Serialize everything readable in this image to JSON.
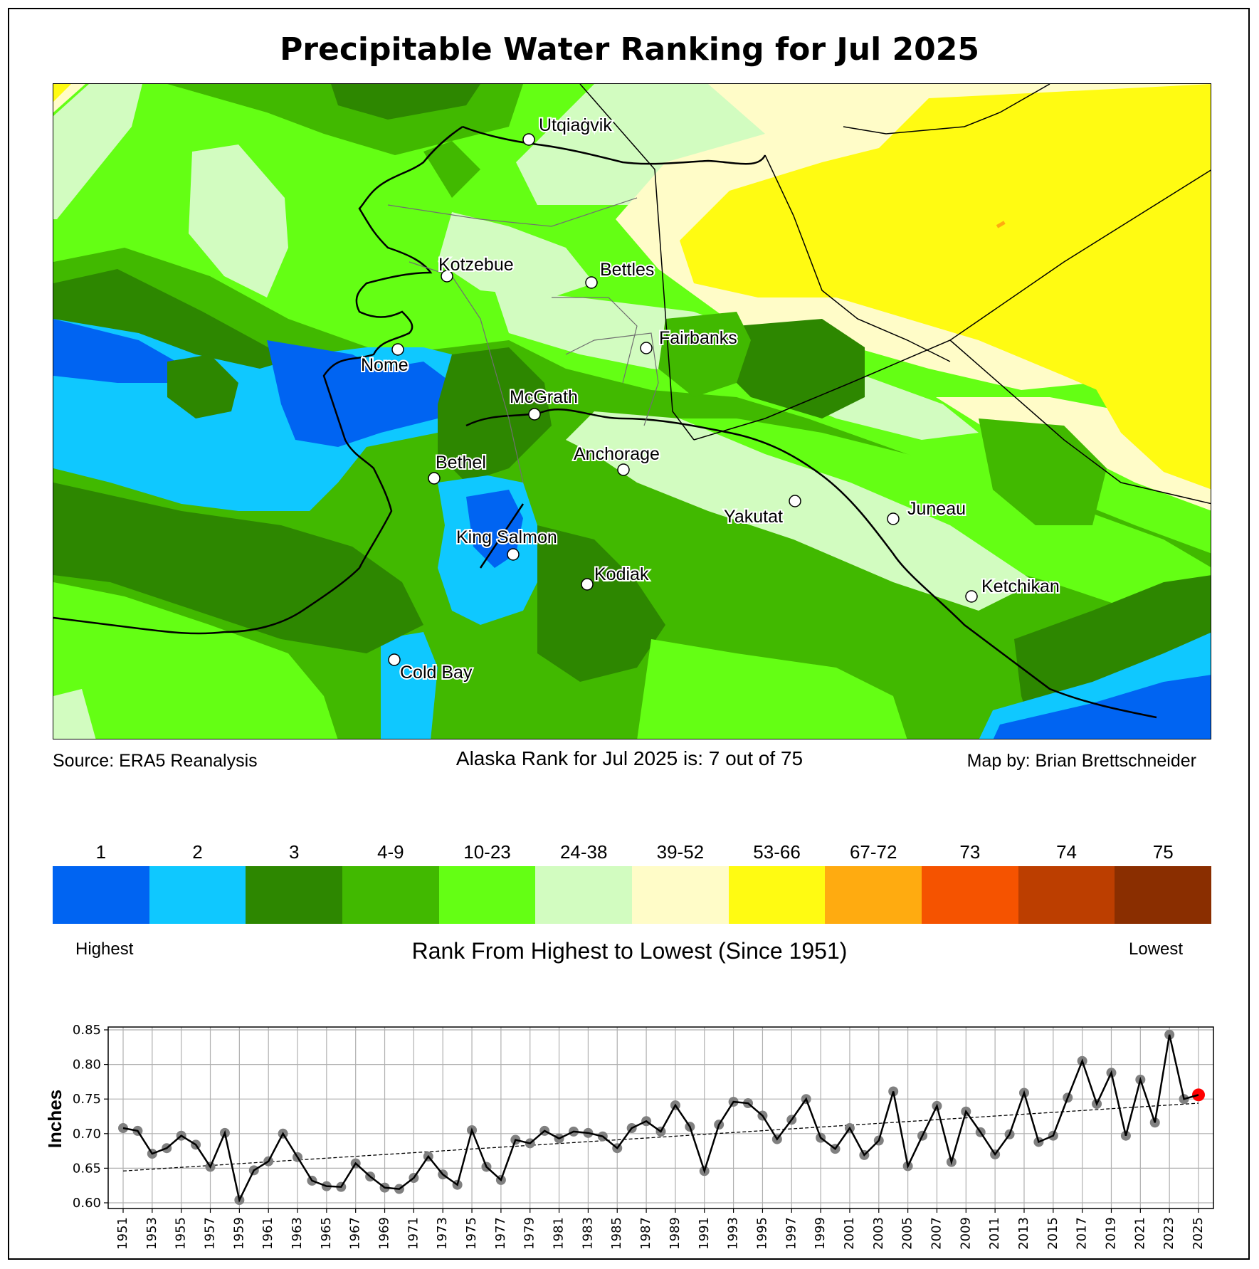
{
  "title": "Precipitable Water Ranking for Jul 2025",
  "source_text": "Source: ERA5 Reanalysis",
  "rank_text": "Alaska Rank for Jul 2025 is: 7 out of 75",
  "credit_text": "Map by: Brian Brettschneider",
  "map": {
    "cities": [
      {
        "name": "Utqiaġvik"
      },
      {
        "name": "Kotzebue"
      },
      {
        "name": "Bettles"
      },
      {
        "name": "Nome"
      },
      {
        "name": "Fairbanks"
      },
      {
        "name": "McGrath"
      },
      {
        "name": "Anchorage"
      },
      {
        "name": "Bethel"
      },
      {
        "name": "Yakutat"
      },
      {
        "name": "Juneau"
      },
      {
        "name": "King Salmon"
      },
      {
        "name": "Kodiak"
      },
      {
        "name": "Ketchikan"
      },
      {
        "name": "Cold Bay"
      }
    ]
  },
  "colorbar": {
    "bins": [
      {
        "label": "1",
        "color": "#0064f2"
      },
      {
        "label": "2",
        "color": "#0fc8ff"
      },
      {
        "label": "3",
        "color": "#2d8700"
      },
      {
        "label": "4-9",
        "color": "#41b900"
      },
      {
        "label": "10-23",
        "color": "#64ff14"
      },
      {
        "label": "24-38",
        "color": "#d2fcc0"
      },
      {
        "label": "39-52",
        "color": "#fffcc8"
      },
      {
        "label": "53-66",
        "color": "#fffb12"
      },
      {
        "label": "67-72",
        "color": "#ffab10"
      },
      {
        "label": "73",
        "color": "#f55300"
      },
      {
        "label": "74",
        "color": "#bc3e00"
      },
      {
        "label": "75",
        "color": "#8a2e00"
      }
    ],
    "left_label": "Highest",
    "right_label": "Lowest",
    "title": "Rank From Highest to Lowest (Since 1951)"
  },
  "chart_data": {
    "type": "line",
    "title": "",
    "xlabel": "",
    "ylabel": "Inches",
    "ylim": [
      0.592,
      0.853
    ],
    "yticks": [
      0.6,
      0.65,
      0.7,
      0.75,
      0.8,
      0.85
    ],
    "xlim": [
      1949.9,
      2026.0
    ],
    "xticks": [
      1951,
      1953,
      1955,
      1957,
      1959,
      1961,
      1963,
      1965,
      1967,
      1969,
      1971,
      1973,
      1975,
      1977,
      1979,
      1981,
      1983,
      1985,
      1987,
      1989,
      1991,
      1993,
      1995,
      1997,
      1999,
      2001,
      2003,
      2005,
      2007,
      2009,
      2011,
      2013,
      2015,
      2017,
      2019,
      2021,
      2023,
      2025
    ],
    "grid": true,
    "highlight": {
      "year": 2025,
      "color": "#ff0000"
    },
    "marker_color": "#808080",
    "line_color": "#000000",
    "trend": {
      "start": [
        1951,
        0.646
      ],
      "end": [
        2025,
        0.744
      ],
      "style": "dashed"
    },
    "x": [
      1951,
      1952,
      1953,
      1954,
      1955,
      1956,
      1957,
      1958,
      1959,
      1960,
      1961,
      1962,
      1963,
      1964,
      1965,
      1966,
      1967,
      1968,
      1969,
      1970,
      1971,
      1972,
      1973,
      1974,
      1975,
      1976,
      1977,
      1978,
      1979,
      1980,
      1981,
      1982,
      1983,
      1984,
      1985,
      1986,
      1987,
      1988,
      1989,
      1990,
      1991,
      1992,
      1993,
      1994,
      1995,
      1996,
      1997,
      1998,
      1999,
      2000,
      2001,
      2002,
      2003,
      2004,
      2005,
      2006,
      2007,
      2008,
      2009,
      2010,
      2011,
      2012,
      2013,
      2014,
      2015,
      2016,
      2017,
      2018,
      2019,
      2020,
      2021,
      2022,
      2023,
      2024,
      2025
    ],
    "y": [
      0.708,
      0.704,
      0.671,
      0.679,
      0.697,
      0.684,
      0.652,
      0.701,
      0.604,
      0.647,
      0.66,
      0.7,
      0.666,
      0.632,
      0.624,
      0.623,
      0.657,
      0.638,
      0.622,
      0.62,
      0.636,
      0.667,
      0.641,
      0.626,
      0.705,
      0.652,
      0.633,
      0.691,
      0.686,
      0.704,
      0.693,
      0.703,
      0.701,
      0.696,
      0.679,
      0.708,
      0.718,
      0.703,
      0.741,
      0.71,
      0.646,
      0.713,
      0.746,
      0.744,
      0.726,
      0.692,
      0.72,
      0.75,
      0.694,
      0.678,
      0.708,
      0.669,
      0.69,
      0.761,
      0.653,
      0.697,
      0.74,
      0.659,
      0.732,
      0.702,
      0.67,
      0.699,
      0.759,
      0.688,
      0.697,
      0.752,
      0.805,
      0.743,
      0.788,
      0.697,
      0.778,
      0.716,
      0.843,
      0.75,
      0.756
    ]
  }
}
